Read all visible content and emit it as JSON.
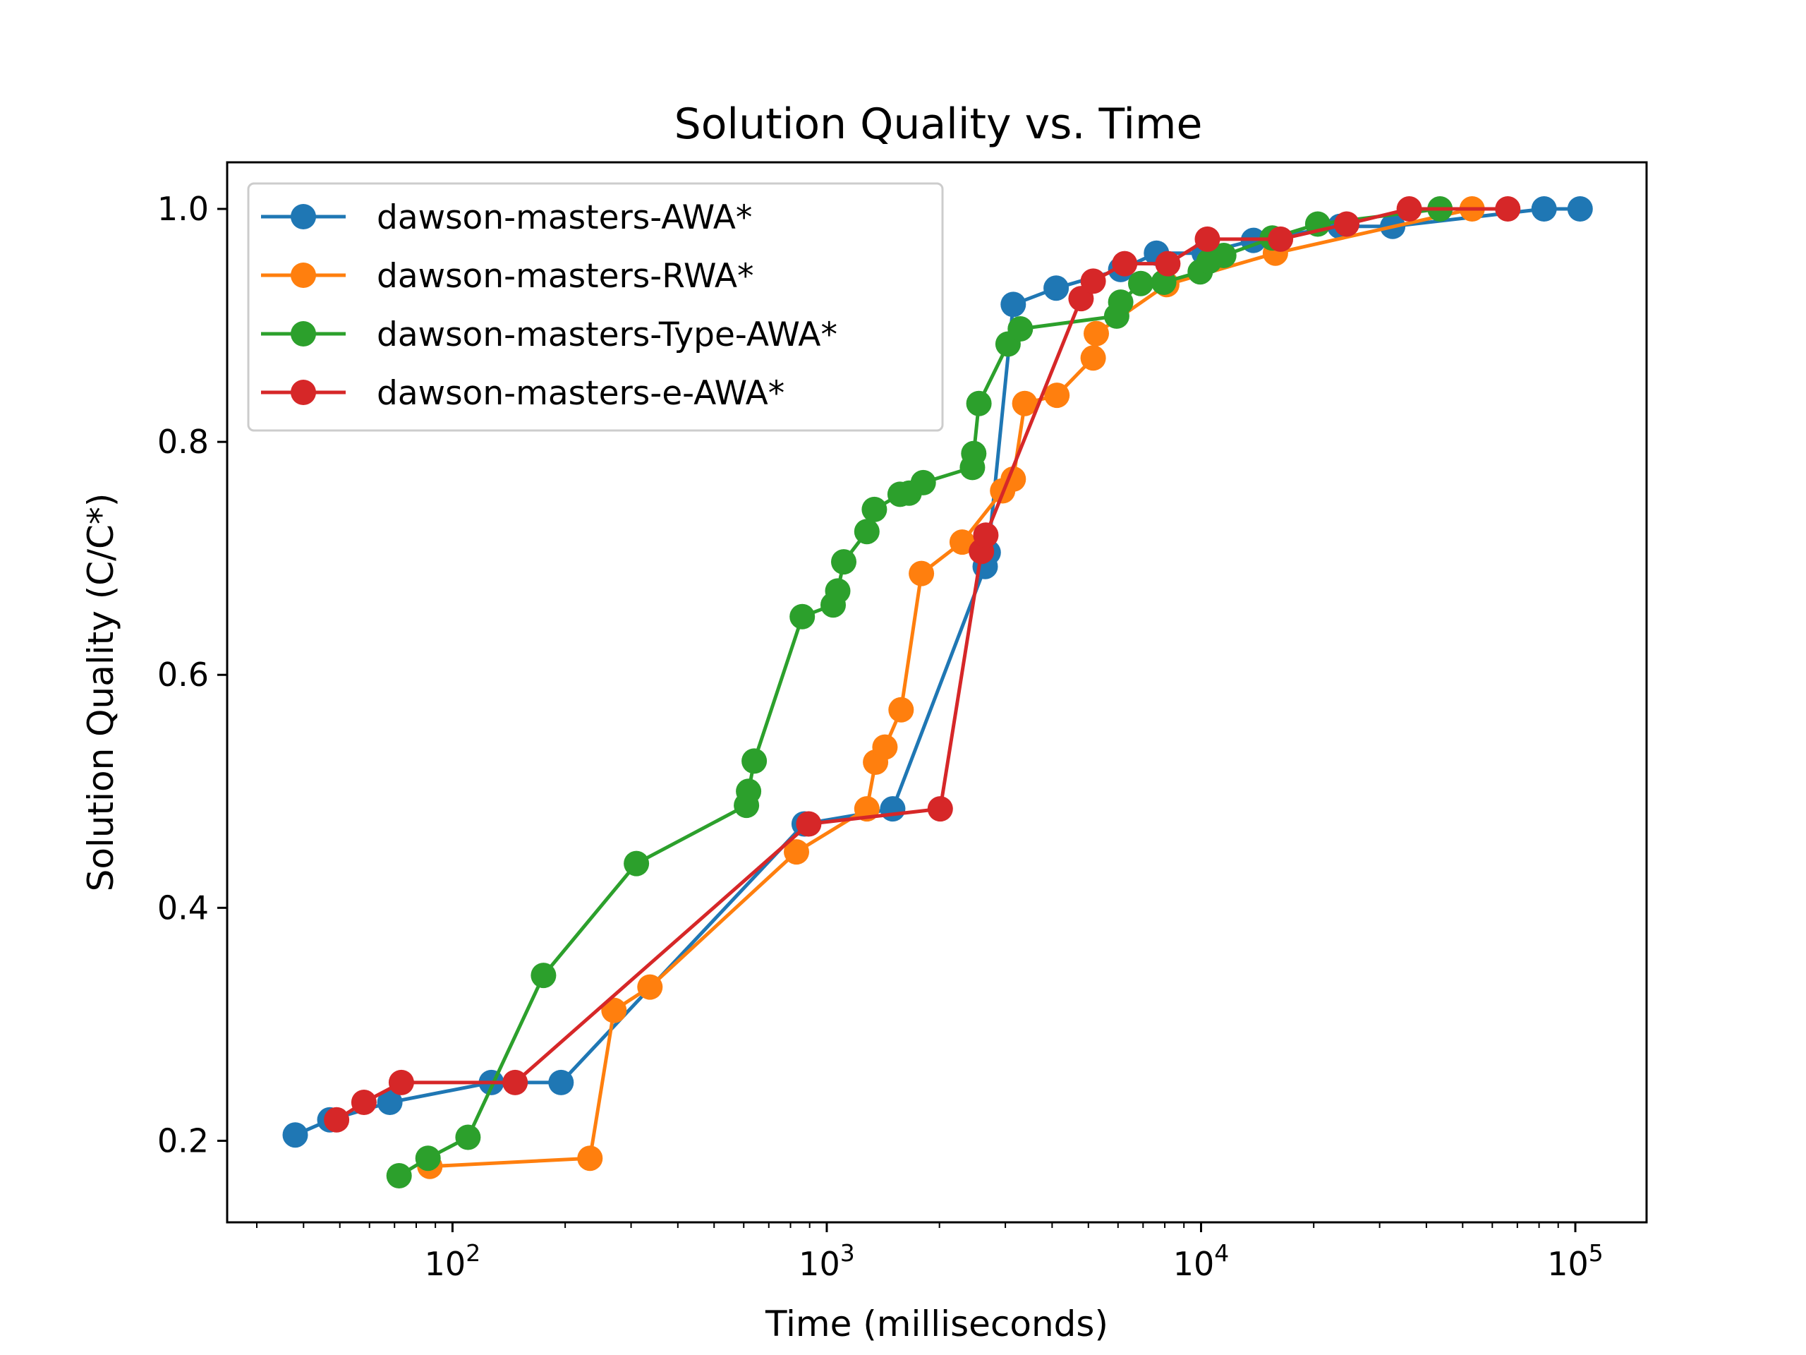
{
  "chart_data": {
    "type": "line",
    "title": "Solution Quality vs. Time",
    "xlabel": "Time (milliseconds)",
    "ylabel": "Solution Quality (C/C*)",
    "xscale": "log",
    "xlim": [
      25,
      155000
    ],
    "ylim": [
      0.13,
      1.04
    ],
    "xticks": [
      {
        "value": 100,
        "base": "10",
        "exp": "2"
      },
      {
        "value": 1000,
        "base": "10",
        "exp": "3"
      },
      {
        "value": 10000,
        "base": "10",
        "exp": "4"
      },
      {
        "value": 100000,
        "base": "10",
        "exp": "5"
      }
    ],
    "yticks": [
      {
        "value": 0.2,
        "label": "0.2"
      },
      {
        "value": 0.4,
        "label": "0.4"
      },
      {
        "value": 0.6,
        "label": "0.6"
      },
      {
        "value": 0.8,
        "label": "0.8"
      },
      {
        "value": 1.0,
        "label": "1.0"
      }
    ],
    "grid": false,
    "legend_position": "upper-left",
    "series": [
      {
        "name": "dawson-masters-AWA*",
        "color": "#1f77b4",
        "points": [
          [
            38,
            0.205
          ],
          [
            47,
            0.218
          ],
          [
            68,
            0.233
          ],
          [
            127,
            0.25
          ],
          [
            195,
            0.25
          ],
          [
            870,
            0.472
          ],
          [
            1500,
            0.485
          ],
          [
            2650,
            0.693
          ],
          [
            2700,
            0.705
          ],
          [
            3150,
            0.918
          ],
          [
            4100,
            0.932
          ],
          [
            6100,
            0.948
          ],
          [
            7600,
            0.962
          ],
          [
            10200,
            0.962
          ],
          [
            13800,
            0.973
          ],
          [
            23500,
            0.985
          ],
          [
            32500,
            0.985
          ],
          [
            82500,
            1.0
          ],
          [
            103000,
            1.0
          ]
        ]
      },
      {
        "name": "dawson-masters-RWA*",
        "color": "#ff7f0e",
        "points": [
          [
            87,
            0.178
          ],
          [
            233,
            0.185
          ],
          [
            270,
            0.312
          ],
          [
            337,
            0.332
          ],
          [
            830,
            0.448
          ],
          [
            1280,
            0.485
          ],
          [
            1350,
            0.525
          ],
          [
            1430,
            0.538
          ],
          [
            1580,
            0.57
          ],
          [
            1790,
            0.687
          ],
          [
            2300,
            0.714
          ],
          [
            2950,
            0.758
          ],
          [
            3150,
            0.768
          ],
          [
            3380,
            0.833
          ],
          [
            4120,
            0.84
          ],
          [
            5150,
            0.872
          ],
          [
            5250,
            0.893
          ],
          [
            8100,
            0.935
          ],
          [
            15800,
            0.962
          ],
          [
            53000,
            1.0
          ]
        ]
      },
      {
        "name": "dawson-masters-Type-AWA*",
        "color": "#2ca02c",
        "points": [
          [
            72,
            0.17
          ],
          [
            86,
            0.185
          ],
          [
            110,
            0.203
          ],
          [
            175,
            0.342
          ],
          [
            310,
            0.438
          ],
          [
            610,
            0.488
          ],
          [
            618,
            0.5
          ],
          [
            640,
            0.526
          ],
          [
            860,
            0.65
          ],
          [
            1040,
            0.66
          ],
          [
            1070,
            0.672
          ],
          [
            1110,
            0.697
          ],
          [
            1280,
            0.723
          ],
          [
            1340,
            0.742
          ],
          [
            1570,
            0.755
          ],
          [
            1660,
            0.756
          ],
          [
            1810,
            0.765
          ],
          [
            2450,
            0.778
          ],
          [
            2470,
            0.79
          ],
          [
            2550,
            0.833
          ],
          [
            3050,
            0.884
          ],
          [
            3290,
            0.897
          ],
          [
            5950,
            0.908
          ],
          [
            6100,
            0.92
          ],
          [
            6900,
            0.936
          ],
          [
            7950,
            0.937
          ],
          [
            9950,
            0.946
          ],
          [
            10500,
            0.955
          ],
          [
            11500,
            0.96
          ],
          [
            15500,
            0.975
          ],
          [
            20500,
            0.987
          ],
          [
            43500,
            1.0
          ]
        ]
      },
      {
        "name": "dawson-masters-e-AWA*",
        "color": "#d62728",
        "points": [
          [
            49,
            0.218
          ],
          [
            58,
            0.233
          ],
          [
            73,
            0.25
          ],
          [
            147,
            0.25
          ],
          [
            895,
            0.472
          ],
          [
            2010,
            0.485
          ],
          [
            2590,
            0.706
          ],
          [
            2660,
            0.72
          ],
          [
            4780,
            0.923
          ],
          [
            5150,
            0.938
          ],
          [
            6250,
            0.953
          ],
          [
            8150,
            0.953
          ],
          [
            10400,
            0.974
          ],
          [
            16300,
            0.974
          ],
          [
            24500,
            0.987
          ],
          [
            36000,
            1.0
          ],
          [
            66000,
            1.0
          ]
        ]
      }
    ]
  }
}
